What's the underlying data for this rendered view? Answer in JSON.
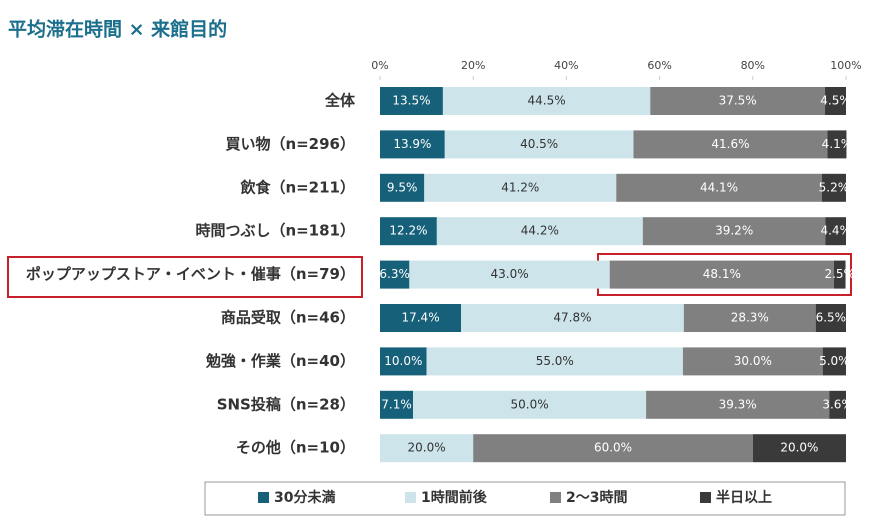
{
  "chart_data": {
    "type": "stacked_barh",
    "title": "平均滞在時間 × 来館目的",
    "categories": [
      "全体",
      "買い物（n=296）",
      "飲食（n=211）",
      "時間つぶし（n=181）",
      "ポップアップストア・イベント・催事（n=79）",
      "商品受取（n=46）",
      "勉強・作業（n=40）",
      "SNS投稿（n=28）",
      "その他（n=10）"
    ],
    "series": [
      {
        "name": "30分未満",
        "color": "#17607a",
        "values": [
          13.5,
          13.9,
          9.5,
          12.2,
          6.3,
          17.4,
          10.0,
          7.1,
          null
        ],
        "value_labels": [
          "13.5%",
          "13.9%",
          "9.5%",
          "12.2%",
          "6.3%",
          "17.4%",
          "10.0%",
          "7.1%",
          null
        ]
      },
      {
        "name": "1時間前後",
        "color": "#cde5ea",
        "values": [
          44.5,
          40.5,
          41.2,
          44.2,
          43.0,
          47.8,
          55.0,
          50.0,
          20.0
        ],
        "value_labels": [
          "44.5%",
          "40.5%",
          "41.2%",
          "44.2%",
          "43.0%",
          "47.8%",
          "55.0%",
          "50.0%",
          "20.0%"
        ]
      },
      {
        "name": "2〜3時間",
        "color": "#808080",
        "values": [
          37.5,
          41.6,
          44.1,
          39.2,
          48.1,
          28.3,
          30.0,
          39.3,
          60.0
        ],
        "value_labels": [
          "37.5%",
          "41.6%",
          "44.1%",
          "39.2%",
          "48.1%",
          "28.3%",
          "30.0%",
          "39.3%",
          "60.0%"
        ]
      },
      {
        "name": "半日以上",
        "color": "#3a3a3a",
        "values": [
          4.5,
          4.1,
          5.2,
          4.4,
          2.5,
          6.5,
          5.0,
          3.6,
          20.0
        ],
        "value_labels": [
          "4.5%",
          "4.1%",
          "5.2%",
          "4.4%",
          "2.5%",
          "6.5%",
          "5.0%",
          "3.6%",
          "20.0%"
        ]
      }
    ],
    "xlim": [
      0,
      100
    ],
    "xticks": [
      {
        "value": 0,
        "label": "0%"
      },
      {
        "value": 20,
        "label": "20%"
      },
      {
        "value": 40,
        "label": "40%"
      },
      {
        "value": 60,
        "label": "60%"
      },
      {
        "value": 80,
        "label": "80%"
      },
      {
        "value": 100,
        "label": "100%"
      }
    ],
    "legend": "bottom"
  }
}
